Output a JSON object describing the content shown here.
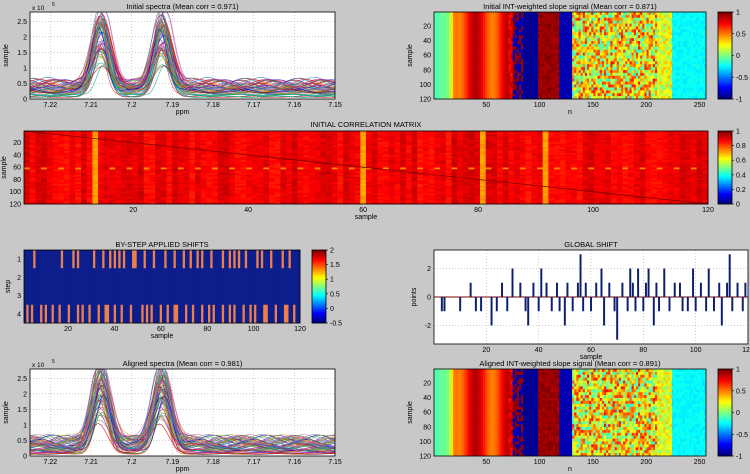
{
  "figure": {
    "background": "#c8c8c8"
  },
  "chart_data": [
    {
      "id": "initial_spectra",
      "type": "line",
      "title": "Initial spectra (Mean corr = 0.971)",
      "xlabel": "ppm",
      "ylabel": "sample",
      "xlim": [
        7.225,
        7.15
      ],
      "x_reversed": true,
      "ylim": [
        0,
        2.8
      ],
      "y_exponent": "x 10",
      "y_exponent_power": "5",
      "xticks": [
        "7.22",
        "7.21",
        "7.2",
        "7.19",
        "7.18",
        "7.17",
        "7.16",
        "7.15"
      ],
      "yticks": [
        "0",
        "0.5",
        "1",
        "1.5",
        "2",
        "2.5"
      ],
      "peaks_ppm": [
        7.2075,
        7.1925
      ],
      "peak_max": 2.75,
      "baseline_max": 0.7,
      "n_series": 120,
      "grid": true
    },
    {
      "id": "initial_int_slope",
      "type": "heatmap",
      "title": "Initial INT-weighted slope signal (Mean corr = 0.871)",
      "xlabel": "n",
      "ylabel": "sample",
      "xlim": [
        1,
        256
      ],
      "ylim": [
        1,
        120
      ],
      "xticks": [
        "50",
        "100",
        "150",
        "200",
        "250"
      ],
      "yticks": [
        "20",
        "40",
        "60",
        "80",
        "100",
        "120"
      ],
      "colorbar_ticks": [
        "1",
        "0.5",
        "0",
        "-0.5",
        "-1"
      ],
      "clim": [
        -1,
        1
      ]
    },
    {
      "id": "initial_correlation",
      "type": "heatmap",
      "title": "INITIAL CORRELATION MATRIX",
      "xlabel": "sample",
      "ylabel": "sample",
      "xlim": [
        1,
        120
      ],
      "ylim": [
        1,
        120
      ],
      "xticks": [
        "20",
        "40",
        "60",
        "80",
        "100",
        "120"
      ],
      "yticks": [
        "20",
        "40",
        "60",
        "80",
        "100",
        "120"
      ],
      "colorbar_ticks": [
        "1",
        "0.8",
        "0.6",
        "0.4",
        "0.2",
        "0"
      ],
      "clim": [
        0,
        1
      ],
      "bright_columns": [
        60,
        13,
        81,
        92
      ]
    },
    {
      "id": "bystep_shifts",
      "type": "heatmap",
      "title": "BY-STEP APPLIED SHIFTS",
      "xlabel": "sample",
      "ylabel": "step",
      "xlim": [
        1,
        120
      ],
      "ylim": [
        1,
        4
      ],
      "xticks": [
        "20",
        "40",
        "60",
        "80",
        "100",
        "120"
      ],
      "yticks": [
        "1",
        "2",
        "3",
        "4"
      ],
      "colorbar_ticks": [
        "2",
        "1.5",
        "1",
        "0.5",
        "0",
        "-0.5"
      ],
      "clim": [
        -0.5,
        2
      ],
      "step1_shift_samples": [
        5,
        17,
        22,
        24,
        31,
        35,
        38,
        40,
        42,
        44,
        48,
        49,
        53,
        57,
        62,
        66,
        70,
        73,
        76,
        78,
        82,
        87,
        90,
        92,
        94,
        97,
        102,
        104,
        108,
        113,
        116
      ],
      "step4_shift_samples": [
        2,
        4,
        8,
        10,
        13,
        16,
        20,
        24,
        26,
        29,
        33,
        36,
        37,
        40,
        43,
        47,
        52,
        54,
        56,
        60,
        63,
        66,
        67,
        71,
        74,
        78,
        81,
        83,
        87,
        90,
        92,
        96,
        99,
        101,
        105,
        106,
        110,
        114,
        115,
        118
      ]
    },
    {
      "id": "global_shift",
      "type": "bar",
      "title": "GLOBAL SHIFT",
      "xlabel": "sample",
      "ylabel": "points",
      "xlim": [
        0,
        120
      ],
      "ylim": [
        -3.3,
        3.3
      ],
      "xticks": [
        "20",
        "40",
        "60",
        "80",
        "100",
        "120"
      ],
      "yticks": [
        "-2",
        "0",
        "2"
      ],
      "x": [
        3,
        4,
        10,
        14,
        16,
        18,
        22,
        24,
        26,
        28,
        30,
        33,
        35,
        36,
        38,
        40,
        41,
        43,
        45,
        47,
        48,
        50,
        51,
        53,
        55,
        56,
        57,
        58,
        60,
        62,
        64,
        65,
        67,
        69,
        70,
        72,
        74,
        75,
        76,
        77,
        78,
        80,
        81,
        82,
        84,
        85,
        86,
        88,
        90,
        92,
        94,
        95,
        97,
        99,
        100,
        102,
        104,
        105,
        107,
        109,
        110,
        112,
        113,
        114,
        116,
        118,
        119
      ],
      "values": [
        -1,
        -1,
        -1,
        1,
        -1,
        -1,
        -2,
        -1,
        1,
        -1,
        2,
        1,
        -1,
        -2,
        1,
        -1,
        2,
        1,
        -1,
        1,
        -1,
        -2,
        1,
        -1,
        1,
        3,
        -1,
        1,
        -1,
        1,
        2,
        -2,
        1,
        -1,
        -3,
        1,
        -1,
        2,
        1,
        -1,
        2,
        -1,
        1,
        2,
        -2,
        1,
        -1,
        2,
        -1,
        1,
        1,
        -1,
        -1,
        2,
        -1,
        1,
        -1,
        2,
        -1,
        1,
        -2,
        1,
        3,
        -1,
        1,
        -1,
        1
      ],
      "grid": true
    },
    {
      "id": "aligned_spectra",
      "type": "line",
      "title": "Aligned spectra (Mean corr = 0.981)",
      "xlabel": "ppm",
      "ylabel": "sample",
      "xlim": [
        7.225,
        7.15
      ],
      "x_reversed": true,
      "ylim": [
        0,
        2.8
      ],
      "y_exponent": "x 10",
      "y_exponent_power": "5",
      "xticks": [
        "7.22",
        "7.21",
        "7.2",
        "7.19",
        "7.18",
        "7.17",
        "7.16",
        "7.15"
      ],
      "yticks": [
        "0",
        "0.5",
        "1",
        "1.5",
        "2",
        "2.5"
      ],
      "peaks_ppm": [
        7.2075,
        7.1925
      ],
      "peak_max": 2.75,
      "baseline_max": 0.7,
      "n_series": 120,
      "grid": true
    },
    {
      "id": "aligned_int_slope",
      "type": "heatmap",
      "title": "Aligned INT-weighted slope signal (Mean corr = 0.891)",
      "xlabel": "n",
      "ylabel": "sample",
      "xlim": [
        1,
        256
      ],
      "ylim": [
        1,
        120
      ],
      "xticks": [
        "50",
        "100",
        "150",
        "200",
        "250"
      ],
      "yticks": [
        "20",
        "40",
        "60",
        "80",
        "100",
        "120"
      ],
      "colorbar_ticks": [
        "1",
        "0.5",
        "0",
        "-0.5",
        "-1"
      ],
      "clim": [
        -1,
        1
      ]
    }
  ]
}
